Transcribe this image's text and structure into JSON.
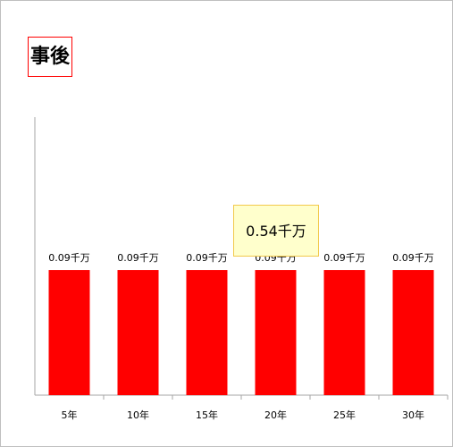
{
  "title": "事後",
  "total_label": "0.54千万",
  "colors": {
    "bar": "#ff0000",
    "axis": "#a6a6a6",
    "title_border": "#ff0000",
    "total_bg": "#ffffcc"
  },
  "chart_data": {
    "type": "bar",
    "title": "事後",
    "categories": [
      "5年",
      "10年",
      "15年",
      "20年",
      "25年",
      "30年"
    ],
    "values": [
      0.09,
      0.09,
      0.09,
      0.09,
      0.09,
      0.09
    ],
    "data_labels": [
      "0.09千万",
      "0.09千万",
      "0.09千万",
      "0.09千万",
      "0.09千万",
      "0.09千万"
    ],
    "annotation": "0.54千万",
    "ylim": [
      0,
      0.2
    ],
    "grid": false,
    "legend": "none",
    "xlabel": "",
    "ylabel": ""
  }
}
